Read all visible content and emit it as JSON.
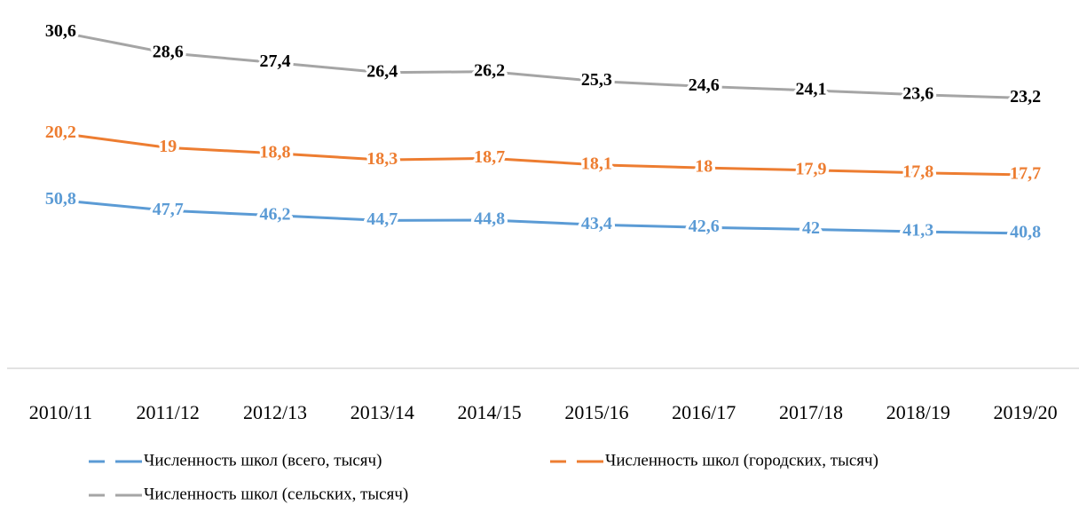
{
  "chart_data": {
    "type": "line",
    "stacked": true,
    "categories": [
      "2010/11",
      "2011/12",
      "2012/13",
      "2013/14",
      "2014/15",
      "2015/16",
      "2016/17",
      "2017/18",
      "2018/19",
      "2019/20"
    ],
    "ylim": [
      0,
      110
    ],
    "grid": false,
    "legend": "bottom",
    "series": [
      {
        "name": "Численность школ (всего, тысяч)",
        "color": "#5b9bd5",
        "label_color": "#5b9bd5",
        "values": [
          50.8,
          47.7,
          46.2,
          44.7,
          44.8,
          43.4,
          42.6,
          42,
          41.3,
          40.8
        ],
        "value_labels": [
          "50,8",
          "47,7",
          "46,2",
          "44,7",
          "44,8",
          "43,4",
          "42,6",
          "42",
          "41,3",
          "40,8"
        ]
      },
      {
        "name": "Численность школ (городских, тысяч)",
        "color": "#ed7d31",
        "label_color": "#ed7d31",
        "values": [
          20.2,
          19,
          18.8,
          18.3,
          18.7,
          18.1,
          18,
          17.9,
          17.8,
          17.7
        ],
        "value_labels": [
          "20,2",
          "19",
          "18,8",
          "18,3",
          "18,7",
          "18,1",
          "18",
          "17,9",
          "17,8",
          "17,7"
        ]
      },
      {
        "name": "Численность школ (сельских, тысяч)",
        "color": "#a5a5a5",
        "label_color": "#000000",
        "values": [
          30.6,
          28.6,
          27.4,
          26.4,
          26.2,
          25.3,
          24.6,
          24.1,
          23.6,
          23.2
        ],
        "value_labels": [
          "30,6",
          "28,6",
          "27,4",
          "26,4",
          "26,2",
          "25,3",
          "24,6",
          "24,1",
          "23,6",
          "23,2"
        ]
      }
    ]
  }
}
